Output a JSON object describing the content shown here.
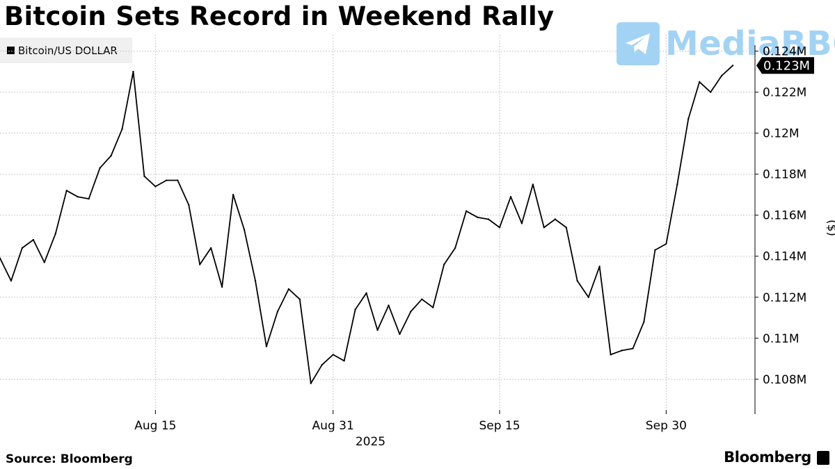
{
  "source": "Source: Bloomberg",
  "brand": "Bloomberg",
  "watermark": {
    "text": "MediaBBG",
    "icon": "telegram-icon",
    "color": "#49a9ea"
  },
  "colors": {
    "line": "#000000",
    "grid": "#c8c8c8",
    "legend_bg": "#f0f0f0",
    "last_value_bg": "#000000"
  },
  "chart_data": {
    "type": "line",
    "title": "Bitcoin Sets Record in Weekend Rally",
    "ylabel": "($)",
    "y_axis_side": "right",
    "ylim": [
      106300,
      124800
    ],
    "yticks": [
      108000,
      110000,
      112000,
      114000,
      116000,
      118000,
      120000,
      122000,
      124000
    ],
    "ytick_labels": [
      "0.108M",
      "0.11M",
      "0.112M",
      "0.114M",
      "0.116M",
      "0.118M",
      "0.12M",
      "0.122M",
      "0.124M"
    ],
    "xlim": [
      "2025-08-01",
      "2025-10-08"
    ],
    "xticks": [
      "2025-08-15",
      "2025-08-31",
      "2025-09-15",
      "2025-09-30"
    ],
    "xtick_labels": [
      "Aug 15",
      "Aug 31",
      "Sep 15",
      "Sep 30"
    ],
    "x_year_label": "2025",
    "grid": true,
    "legend": {
      "position": "top-left",
      "entries": [
        "Bitcoin/US DOLLAR"
      ]
    },
    "last_value_label": "0.123M",
    "series": [
      {
        "name": "Bitcoin/US DOLLAR",
        "x": [
          "2025-08-01",
          "2025-08-02",
          "2025-08-03",
          "2025-08-04",
          "2025-08-05",
          "2025-08-06",
          "2025-08-07",
          "2025-08-08",
          "2025-08-09",
          "2025-08-10",
          "2025-08-11",
          "2025-08-12",
          "2025-08-13",
          "2025-08-14",
          "2025-08-15",
          "2025-08-16",
          "2025-08-17",
          "2025-08-18",
          "2025-08-19",
          "2025-08-20",
          "2025-08-21",
          "2025-08-22",
          "2025-08-23",
          "2025-08-24",
          "2025-08-25",
          "2025-08-26",
          "2025-08-27",
          "2025-08-28",
          "2025-08-29",
          "2025-08-30",
          "2025-08-31",
          "2025-09-01",
          "2025-09-02",
          "2025-09-03",
          "2025-09-04",
          "2025-09-05",
          "2025-09-06",
          "2025-09-07",
          "2025-09-08",
          "2025-09-09",
          "2025-09-10",
          "2025-09-11",
          "2025-09-12",
          "2025-09-13",
          "2025-09-14",
          "2025-09-15",
          "2025-09-16",
          "2025-09-17",
          "2025-09-18",
          "2025-09-19",
          "2025-09-20",
          "2025-09-21",
          "2025-09-22",
          "2025-09-23",
          "2025-09-24",
          "2025-09-25",
          "2025-09-26",
          "2025-09-27",
          "2025-09-28",
          "2025-09-29",
          "2025-09-30",
          "2025-10-01",
          "2025-10-02",
          "2025-10-03",
          "2025-10-04",
          "2025-10-05",
          "2025-10-06"
        ],
        "values": [
          113900,
          112800,
          114400,
          114800,
          113700,
          115100,
          117200,
          116900,
          116800,
          118300,
          118900,
          120200,
          123000,
          117900,
          117400,
          117700,
          117700,
          116500,
          113600,
          114400,
          112500,
          117000,
          115300,
          112800,
          109600,
          111300,
          112400,
          111900,
          107800,
          108700,
          109200,
          108900,
          111400,
          112200,
          110400,
          111600,
          110200,
          111300,
          111900,
          111500,
          113600,
          114400,
          116200,
          115900,
          115800,
          115400,
          116900,
          115600,
          117500,
          115400,
          115800,
          115400,
          112800,
          112000,
          113500,
          109200,
          109400,
          109500,
          110800,
          114300,
          114600,
          117500,
          120700,
          122500,
          122000,
          122800,
          123300
        ]
      }
    ]
  }
}
